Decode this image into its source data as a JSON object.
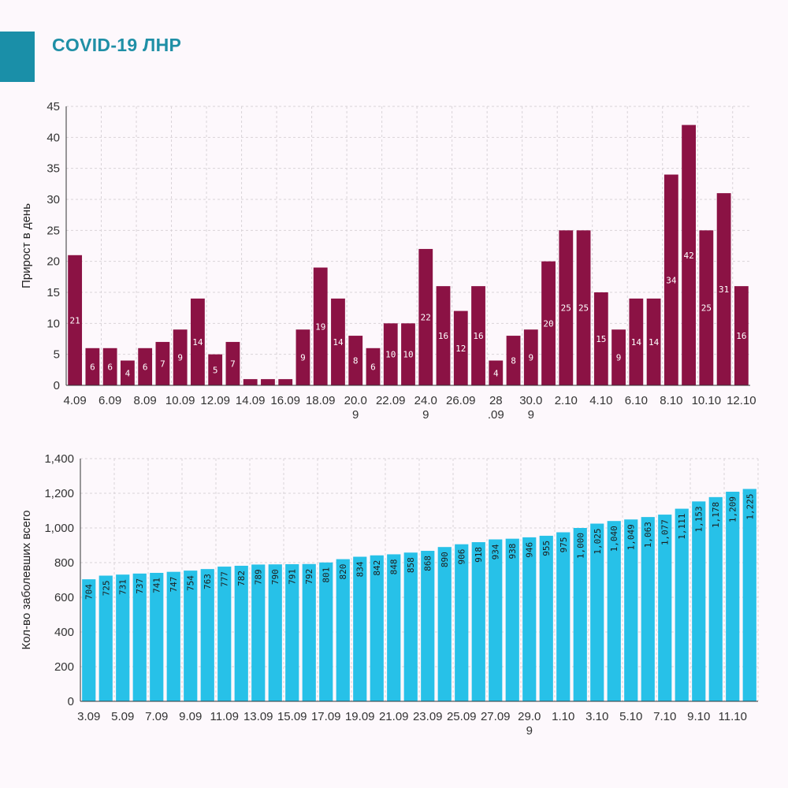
{
  "header": {
    "title": "COVID-19 ЛНР"
  },
  "colors": {
    "accent": "#1a8fa8",
    "daily_bar": "#8b1244",
    "total_bar": "#27c1e8"
  },
  "chart_data": [
    {
      "type": "bar",
      "id": "daily",
      "title": "",
      "ylabel": "Прирост в день",
      "xlabel": "",
      "ylim": [
        0,
        45
      ],
      "yticks": [
        "0",
        "5",
        "10",
        "15",
        "20",
        "25",
        "30",
        "35",
        "40",
        "45"
      ],
      "categories": [
        "4.09",
        "5.09",
        "6.09",
        "7.09",
        "8.09",
        "9.09",
        "10.09",
        "11.09",
        "12.09",
        "13.09",
        "14.09",
        "15.09",
        "16.09",
        "17.09",
        "18.09",
        "19.09",
        "20.09",
        "21.09",
        "22.09",
        "23.09",
        "24.09",
        "25.09",
        "26.09",
        "27.09",
        "28.09",
        "29.09",
        "30.09",
        "1.10",
        "2.10",
        "3.10",
        "4.10",
        "5.10",
        "6.10",
        "7.10",
        "8.10",
        "9.10",
        "10.10",
        "11.10",
        "12.10"
      ],
      "values": [
        21,
        6,
        6,
        4,
        6,
        7,
        9,
        14,
        5,
        7,
        1,
        1,
        1,
        9,
        19,
        14,
        8,
        6,
        10,
        10,
        22,
        16,
        12,
        16,
        4,
        8,
        9,
        20,
        25,
        25,
        15,
        9,
        14,
        14,
        34,
        42,
        25,
        31,
        16
      ],
      "value_labels": [
        "21",
        "6",
        "6",
        "4",
        "6",
        "7",
        "9",
        "14",
        "5",
        "7",
        "",
        "",
        "",
        "9",
        "19",
        "14",
        "8",
        "6",
        "10",
        "10",
        "22",
        "16",
        "12",
        "16",
        "4",
        "8",
        "9",
        "20",
        "25",
        "25",
        "15",
        "9",
        "14",
        "14",
        "34",
        "42",
        "25",
        "31",
        "16"
      ],
      "xtick_labels": [
        {
          "index": 0,
          "lines": [
            "4.09"
          ]
        },
        {
          "index": 2,
          "lines": [
            "6.09"
          ]
        },
        {
          "index": 4,
          "lines": [
            "8.09"
          ]
        },
        {
          "index": 6,
          "lines": [
            "10.09"
          ]
        },
        {
          "index": 8,
          "lines": [
            "12.09"
          ]
        },
        {
          "index": 10,
          "lines": [
            "14.09"
          ]
        },
        {
          "index": 12,
          "lines": [
            "16.09"
          ]
        },
        {
          "index": 14,
          "lines": [
            "18.09"
          ]
        },
        {
          "index": 16,
          "lines": [
            "20.0",
            "9"
          ]
        },
        {
          "index": 18,
          "lines": [
            "22.09"
          ]
        },
        {
          "index": 20,
          "lines": [
            "24.0",
            "9"
          ]
        },
        {
          "index": 22,
          "lines": [
            "26.09"
          ]
        },
        {
          "index": 24,
          "lines": [
            "28",
            ".09"
          ]
        },
        {
          "index": 26,
          "lines": [
            "30.0",
            "9"
          ]
        },
        {
          "index": 28,
          "lines": [
            "2.10"
          ]
        },
        {
          "index": 30,
          "lines": [
            "4.10"
          ]
        },
        {
          "index": 32,
          "lines": [
            "6.10"
          ]
        },
        {
          "index": 34,
          "lines": [
            "8.10"
          ]
        },
        {
          "index": 36,
          "lines": [
            "10.10"
          ]
        },
        {
          "index": 38,
          "lines": [
            "12.10"
          ]
        }
      ]
    },
    {
      "type": "bar",
      "id": "total",
      "title": "",
      "ylabel": "Кол-во заболевших всего",
      "xlabel": "",
      "ylim": [
        0,
        1400
      ],
      "yticks": [
        "0",
        "200",
        "400",
        "600",
        "800",
        "1,000",
        "1,200",
        "1,400"
      ],
      "categories": [
        "3.09",
        "4.09",
        "5.09",
        "6.09",
        "7.09",
        "8.09",
        "9.09",
        "10.09",
        "11.09",
        "12.09",
        "13.09",
        "14.09",
        "15.09",
        "16.09",
        "17.09",
        "18.09",
        "19.09",
        "20.09",
        "21.09",
        "22.09",
        "23.09",
        "24.09",
        "25.09",
        "26.09",
        "27.09",
        "28.09",
        "29.09",
        "30.09",
        "1.10",
        "2.10",
        "3.10",
        "4.10",
        "5.10",
        "6.10",
        "7.10",
        "8.10",
        "9.10",
        "10.10",
        "11.10",
        "12.10"
      ],
      "values": [
        704,
        725,
        731,
        737,
        741,
        747,
        754,
        763,
        777,
        782,
        789,
        790,
        791,
        792,
        801,
        820,
        834,
        842,
        848,
        858,
        868,
        890,
        906,
        918,
        934,
        938,
        946,
        955,
        975,
        1000,
        1025,
        1040,
        1049,
        1063,
        1077,
        1111,
        1153,
        1178,
        1209,
        1225
      ],
      "value_labels": [
        "704",
        "725",
        "731",
        "737",
        "741",
        "747",
        "754",
        "763",
        "777",
        "782",
        "789",
        "790",
        "791",
        "792",
        "801",
        "820",
        "834",
        "842",
        "848",
        "858",
        "868",
        "890",
        "906",
        "918",
        "934",
        "938",
        "946",
        "955",
        "975",
        "1,000",
        "1,025",
        "1,040",
        "1,049",
        "1,063",
        "1,077",
        "1,111",
        "1,153",
        "1,178",
        "1,209",
        "1,225"
      ],
      "xtick_labels": [
        {
          "index": 0,
          "lines": [
            "3.09"
          ]
        },
        {
          "index": 2,
          "lines": [
            "5.09"
          ]
        },
        {
          "index": 4,
          "lines": [
            "7.09"
          ]
        },
        {
          "index": 6,
          "lines": [
            "9.09"
          ]
        },
        {
          "index": 8,
          "lines": [
            "11.09"
          ]
        },
        {
          "index": 10,
          "lines": [
            "13.09"
          ]
        },
        {
          "index": 12,
          "lines": [
            "15.09"
          ]
        },
        {
          "index": 14,
          "lines": [
            "17.09"
          ]
        },
        {
          "index": 16,
          "lines": [
            "19.09"
          ]
        },
        {
          "index": 18,
          "lines": [
            "21.09"
          ]
        },
        {
          "index": 20,
          "lines": [
            "23.09"
          ]
        },
        {
          "index": 22,
          "lines": [
            "25.09"
          ]
        },
        {
          "index": 24,
          "lines": [
            "27.09"
          ]
        },
        {
          "index": 26,
          "lines": [
            "29.0",
            "9"
          ]
        },
        {
          "index": 28,
          "lines": [
            "1.10"
          ]
        },
        {
          "index": 30,
          "lines": [
            "3.10"
          ]
        },
        {
          "index": 32,
          "lines": [
            "5.10"
          ]
        },
        {
          "index": 34,
          "lines": [
            "7.10"
          ]
        },
        {
          "index": 36,
          "lines": [
            "9.10"
          ]
        },
        {
          "index": 38,
          "lines": [
            "11.10"
          ]
        }
      ]
    }
  ]
}
